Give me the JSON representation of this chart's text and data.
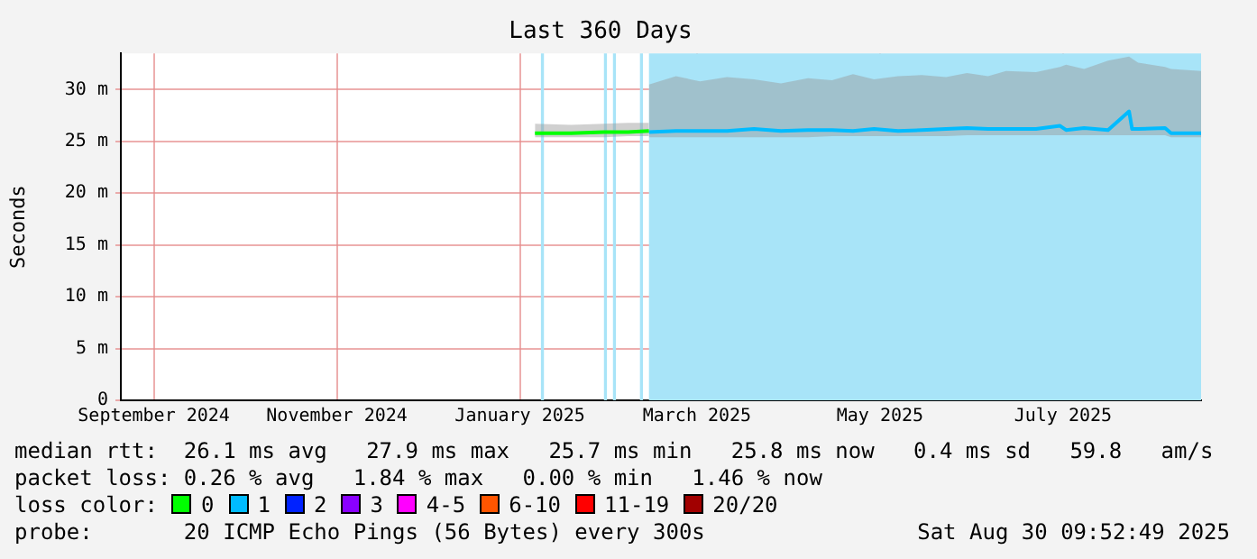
{
  "chart_data": {
    "type": "line",
    "title": "Last 360 Days",
    "ylabel": "Seconds",
    "xlim": [
      "2024-09-04",
      "2025-08-30"
    ],
    "xticks": [
      {
        "value": "2024-09-15",
        "label": "September 2024"
      },
      {
        "value": "2024-11-15",
        "label": "November 2024"
      },
      {
        "value": "2025-01-15",
        "label": "January 2025"
      },
      {
        "value": "2025-03-15",
        "label": "March 2025"
      },
      {
        "value": "2025-05-15",
        "label": "May 2025"
      },
      {
        "value": "2025-07-15",
        "label": "July 2025"
      }
    ],
    "ylim": [
      0,
      33.5
    ],
    "yticks": [
      {
        "value": 0,
        "label": "0"
      },
      {
        "value": 5,
        "label": "5 m"
      },
      {
        "value": 10,
        "label": "10 m"
      },
      {
        "value": 15,
        "label": "15 m"
      },
      {
        "value": 20,
        "label": "20 m"
      },
      {
        "value": 25,
        "label": "25 m"
      },
      {
        "value": 30,
        "label": "30 m"
      }
    ],
    "grid": true,
    "legend": false,
    "marker": "none",
    "line_style": "solid",
    "series": [
      {
        "color": "#00ff00",
        "x": [
          "2025-01-20",
          "2025-02-01",
          "2025-02-12",
          "2025-02-20",
          "2025-02-27"
        ],
        "values": [
          25.8,
          25.8,
          25.9,
          25.9,
          26.0
        ],
        "lower": [
          25.4,
          25.4,
          25.4,
          25.5,
          25.5
        ],
        "upper": [
          26.7,
          26.6,
          26.7,
          26.8,
          26.8
        ]
      },
      {
        "color": "#00bbff",
        "x": [
          "2025-02-27",
          "2025-03-08",
          "2025-03-16",
          "2025-03-25",
          "2025-04-03",
          "2025-04-12",
          "2025-04-21",
          "2025-04-29",
          "2025-05-06",
          "2025-05-13",
          "2025-05-21",
          "2025-05-29",
          "2025-06-06",
          "2025-06-13",
          "2025-06-20",
          "2025-06-26",
          "2025-07-06",
          "2025-07-14",
          "2025-07-16",
          "2025-07-22",
          "2025-07-30",
          "2025-08-06",
          "2025-08-07",
          "2025-08-09",
          "2025-08-18",
          "2025-08-20",
          "2025-08-30"
        ],
        "values": [
          25.9,
          26.0,
          26.0,
          26.0,
          26.2,
          26.0,
          26.1,
          26.1,
          26.0,
          26.2,
          26.0,
          26.1,
          26.2,
          26.3,
          26.2,
          26.2,
          26.2,
          26.5,
          26.1,
          26.3,
          26.1,
          27.9,
          26.2,
          26.2,
          26.3,
          25.8,
          25.8
        ],
        "lower": [
          25.4,
          25.4,
          25.4,
          25.4,
          25.4,
          25.4,
          25.4,
          25.5,
          25.5,
          25.5,
          25.5,
          25.5,
          25.5,
          25.6,
          25.6,
          25.6,
          25.6,
          25.6,
          25.6,
          25.6,
          25.6,
          25.6,
          25.6,
          25.6,
          25.6,
          25.4,
          25.4
        ],
        "upper": [
          30.5,
          31.3,
          30.8,
          31.2,
          31.0,
          30.6,
          31.1,
          30.9,
          31.5,
          31.0,
          31.3,
          31.4,
          31.2,
          31.6,
          31.3,
          31.8,
          31.7,
          32.2,
          32.4,
          32.0,
          32.8,
          33.2,
          33.0,
          32.6,
          32.2,
          32.0,
          31.8
        ]
      }
    ],
    "bands": [
      {
        "axis": "x",
        "from": "2025-01-22",
        "to": "2025-01-23",
        "color": "#a8e4f8"
      },
      {
        "axis": "x",
        "from": "2025-02-12",
        "to": "2025-02-13",
        "color": "#a8e4f8"
      },
      {
        "axis": "x",
        "from": "2025-02-15",
        "to": "2025-02-16",
        "color": "#a8e4f8"
      },
      {
        "axis": "x",
        "from": "2025-02-24",
        "to": "2025-02-25",
        "color": "#a8e4f8"
      },
      {
        "axis": "x",
        "from": "2025-02-27",
        "to": "2025-08-30",
        "color": "#a8e4f8"
      }
    ],
    "annotations": [
      "median rtt:  26.1 ms avg   27.9 ms max   25.7 ms min   25.8 ms now   0.4 ms sd   59.8   am/s",
      "packet loss: 0.26 % avg   1.84 % max   0.00 % min   1.46 % now",
      "loss color:",
      "0",
      "1",
      "2",
      "3",
      "4-5",
      "6-10",
      "11-19",
      "20/20",
      "probe:       20 ICMP Echo Pings (56 Bytes) every 300s",
      "Sat Aug 30 09:52:49 2025"
    ]
  }
}
